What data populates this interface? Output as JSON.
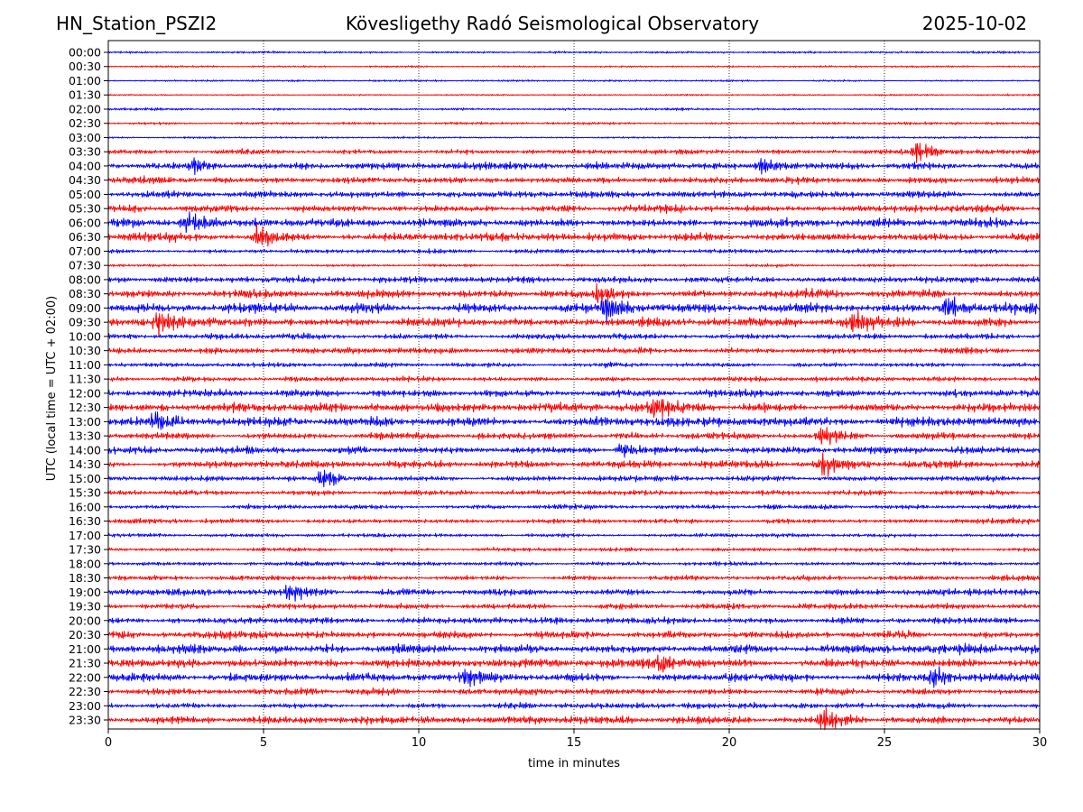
{
  "header": {
    "station": "HN_Station_PSZI2",
    "observatory": "Kövesligethy Radó Seismological Observatory",
    "date": "2025-10-02"
  },
  "chart_data": {
    "type": "line",
    "title": "Kövesligethy Radó Seismological Observatory",
    "xlabel": "time in minutes",
    "ylabel": "UTC (local time = UTC + 02:00)",
    "xlim": [
      0,
      30
    ],
    "x_ticks": [
      0,
      5,
      10,
      15,
      20,
      25,
      30
    ],
    "x_grid": "dotted vertical lines at 5, 10, 15, 20, 25",
    "trace_colors": [
      "#0000ff",
      "#ff0000"
    ],
    "rows": [
      "00:00",
      "00:30",
      "01:00",
      "01:30",
      "02:00",
      "02:30",
      "03:00",
      "03:30",
      "04:00",
      "04:30",
      "05:00",
      "05:30",
      "06:00",
      "06:30",
      "07:00",
      "07:30",
      "08:00",
      "08:30",
      "09:00",
      "09:30",
      "10:00",
      "10:30",
      "11:00",
      "11:30",
      "12:00",
      "12:30",
      "13:00",
      "13:30",
      "14:00",
      "14:30",
      "15:00",
      "15:30",
      "16:00",
      "16:30",
      "17:00",
      "17:30",
      "18:00",
      "18:30",
      "19:00",
      "19:30",
      "20:00",
      "20:30",
      "21:00",
      "21:30",
      "22:00",
      "22:30",
      "23:00",
      "23:30"
    ],
    "row_activity": [
      0.25,
      0.2,
      0.2,
      0.18,
      0.25,
      0.3,
      0.22,
      0.55,
      0.8,
      0.75,
      0.75,
      0.8,
      0.95,
      0.9,
      0.5,
      0.3,
      0.7,
      0.85,
      1.0,
      0.95,
      0.6,
      0.7,
      0.5,
      0.55,
      0.8,
      0.95,
      1.0,
      0.75,
      0.85,
      0.85,
      0.6,
      0.6,
      0.5,
      0.5,
      0.4,
      0.45,
      0.45,
      0.55,
      0.7,
      0.65,
      0.7,
      0.8,
      0.95,
      1.0,
      1.0,
      0.75,
      0.65,
      0.85
    ],
    "bursts": [
      {
        "row": "03:30",
        "minute": 26.0,
        "strength": 2.2
      },
      {
        "row": "04:00",
        "minute": 2.8,
        "strength": 1.8
      },
      {
        "row": "04:00",
        "minute": 21.0,
        "strength": 1.8
      },
      {
        "row": "06:00",
        "minute": 2.5,
        "strength": 2.2
      },
      {
        "row": "06:30",
        "minute": 4.8,
        "strength": 2.2
      },
      {
        "row": "08:30",
        "minute": 15.8,
        "strength": 2.5
      },
      {
        "row": "09:00",
        "minute": 16.0,
        "strength": 2.5
      },
      {
        "row": "09:00",
        "minute": 27.0,
        "strength": 3.0
      },
      {
        "row": "09:30",
        "minute": 1.6,
        "strength": 3.0
      },
      {
        "row": "09:30",
        "minute": 24.0,
        "strength": 2.4
      },
      {
        "row": "12:30",
        "minute": 17.6,
        "strength": 2.6
      },
      {
        "row": "13:00",
        "minute": 1.5,
        "strength": 2.0
      },
      {
        "row": "13:30",
        "minute": 23.0,
        "strength": 2.2
      },
      {
        "row": "14:00",
        "minute": 16.5,
        "strength": 1.8
      },
      {
        "row": "14:30",
        "minute": 23.0,
        "strength": 2.4
      },
      {
        "row": "15:00",
        "minute": 6.9,
        "strength": 2.0
      },
      {
        "row": "19:00",
        "minute": 5.8,
        "strength": 1.8
      },
      {
        "row": "21:30",
        "minute": 17.8,
        "strength": 2.4
      },
      {
        "row": "22:00",
        "minute": 11.5,
        "strength": 2.0
      },
      {
        "row": "22:00",
        "minute": 26.6,
        "strength": 2.4
      },
      {
        "row": "23:30",
        "minute": 23.0,
        "strength": 2.8
      }
    ]
  }
}
